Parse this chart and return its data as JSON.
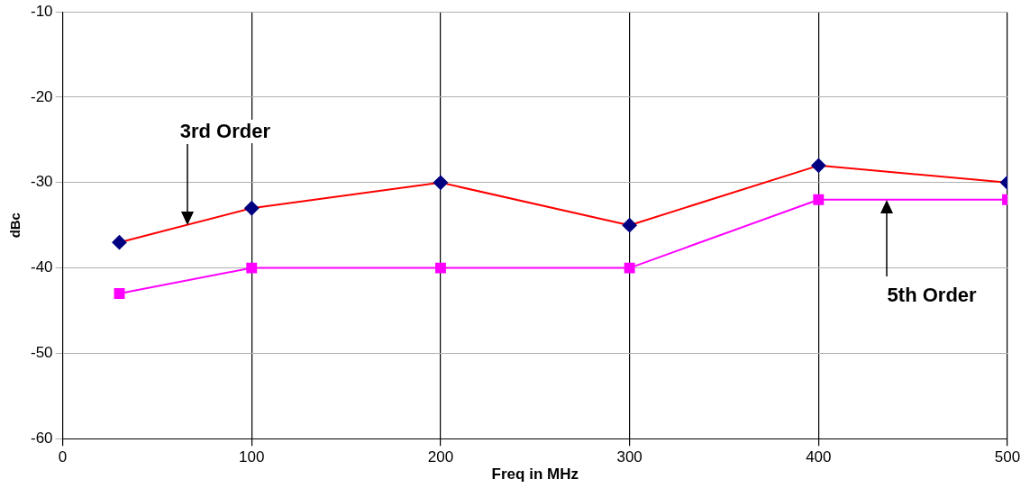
{
  "chart_data": {
    "type": "line",
    "xlabel": "Freq in MHz",
    "ylabel": "dBc",
    "x": [
      30,
      100,
      200,
      300,
      400,
      500
    ],
    "series": [
      {
        "color": "#ff0000",
        "colors": [
          "#000080",
          "#000080",
          "#000080",
          "#000080",
          "#000080",
          "#000080"
        ],
        "marker": "diamond",
        "values": [
          -37,
          -33,
          -30,
          -35,
          -28,
          -30
        ]
      },
      {
        "color": "#ff00ff",
        "colors": [
          "#ff00ff",
          "#ff00ff",
          "#ff00ff",
          "#ff00ff",
          "#ff00ff",
          "#ff00ff"
        ],
        "marker": "square",
        "values": [
          -43,
          -40,
          -40,
          -40,
          -32,
          -32
        ]
      }
    ],
    "xlim": [
      0,
      500
    ],
    "xticks": [
      0,
      100,
      200,
      300,
      400,
      500
    ],
    "ylim": [
      -60,
      -10
    ],
    "yticks": [
      -60,
      -50,
      -40,
      -30,
      -20,
      -10
    ],
    "grid": true,
    "legend": false,
    "line_style": "solid",
    "annotations": [
      "3rd Order",
      "5th Order"
    ]
  }
}
